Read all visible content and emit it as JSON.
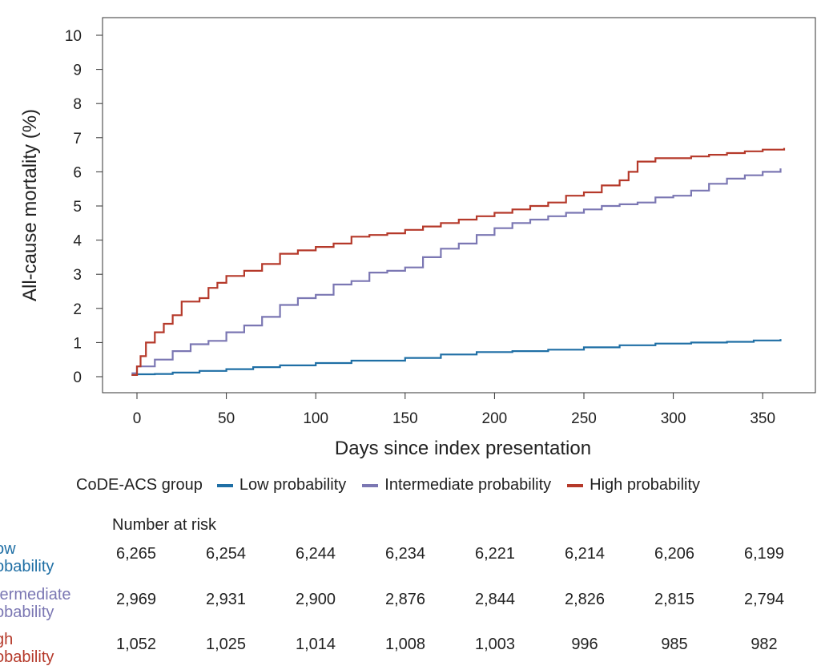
{
  "chart_data": {
    "type": "line",
    "title": "",
    "xlabel": "Days since index presentation",
    "ylabel": "All-cause mortality (%)",
    "xlim": [
      -4,
      365
    ],
    "ylim": [
      0,
      10
    ],
    "xticks": [
      0,
      50,
      100,
      150,
      200,
      250,
      300,
      350
    ],
    "yticks": [
      0,
      1,
      2,
      3,
      4,
      5,
      6,
      7,
      8,
      9,
      10
    ],
    "series": [
      {
        "name": "Low probability",
        "color": "#1f6fa5",
        "x": [
          -3,
          0,
          10,
          20,
          35,
          50,
          65,
          80,
          100,
          120,
          150,
          170,
          190,
          210,
          230,
          250,
          270,
          290,
          310,
          330,
          345,
          360
        ],
        "y": [
          0.05,
          0.07,
          0.08,
          0.12,
          0.17,
          0.22,
          0.28,
          0.33,
          0.4,
          0.47,
          0.55,
          0.65,
          0.72,
          0.75,
          0.79,
          0.86,
          0.92,
          0.97,
          1.0,
          1.02,
          1.06,
          1.1
        ]
      },
      {
        "name": "Intermediate probability",
        "color": "#7b77b3",
        "x": [
          -3,
          0,
          10,
          20,
          30,
          40,
          50,
          60,
          70,
          80,
          90,
          100,
          110,
          120,
          130,
          140,
          150,
          160,
          170,
          180,
          190,
          200,
          210,
          220,
          230,
          240,
          250,
          260,
          270,
          280,
          290,
          300,
          310,
          320,
          330,
          340,
          350,
          360
        ],
        "y": [
          0.1,
          0.3,
          0.5,
          0.75,
          0.95,
          1.05,
          1.3,
          1.5,
          1.75,
          2.1,
          2.3,
          2.4,
          2.7,
          2.8,
          3.05,
          3.1,
          3.2,
          3.5,
          3.75,
          3.9,
          4.15,
          4.35,
          4.5,
          4.6,
          4.7,
          4.8,
          4.9,
          5.0,
          5.05,
          5.1,
          5.25,
          5.3,
          5.45,
          5.65,
          5.8,
          5.9,
          6.0,
          6.1
        ]
      },
      {
        "name": "High probability",
        "color": "#b5392a",
        "x": [
          -3,
          0,
          2,
          5,
          10,
          15,
          20,
          25,
          35,
          40,
          45,
          50,
          60,
          70,
          80,
          90,
          100,
          110,
          120,
          130,
          140,
          150,
          160,
          170,
          180,
          190,
          200,
          210,
          220,
          230,
          240,
          250,
          260,
          270,
          275,
          280,
          290,
          300,
          310,
          320,
          330,
          340,
          350,
          362
        ],
        "y": [
          0.05,
          0.3,
          0.6,
          1.0,
          1.3,
          1.55,
          1.8,
          2.2,
          2.3,
          2.6,
          2.75,
          2.95,
          3.1,
          3.3,
          3.6,
          3.7,
          3.8,
          3.9,
          4.1,
          4.15,
          4.2,
          4.3,
          4.4,
          4.5,
          4.6,
          4.7,
          4.8,
          4.9,
          5.0,
          5.1,
          5.3,
          5.4,
          5.6,
          5.75,
          6.0,
          6.3,
          6.4,
          6.4,
          6.45,
          6.5,
          6.55,
          6.6,
          6.65,
          6.7
        ]
      }
    ],
    "legend_title": "CoDE-ACS group",
    "legend_position": "bottom"
  },
  "risk_table": {
    "title": "Number at risk",
    "rows": [
      {
        "label": "ow\nobability",
        "color": "#1f6fa5",
        "values": [
          "6,265",
          "6,254",
          "6,244",
          "6,234",
          "6,221",
          "6,214",
          "6,206",
          "6,199"
        ]
      },
      {
        "label": "termediate\nobability",
        "color": "#7b77b3",
        "values": [
          "2,969",
          "2,931",
          "2,900",
          "2,876",
          "2,844",
          "2,826",
          "2,815",
          "2,794"
        ]
      },
      {
        "label": "gh\nobability",
        "color": "#b5392a",
        "values": [
          "1,052",
          "1,025",
          "1,014",
          "1,008",
          "1,003",
          "996",
          "985",
          "982"
        ]
      }
    ]
  }
}
